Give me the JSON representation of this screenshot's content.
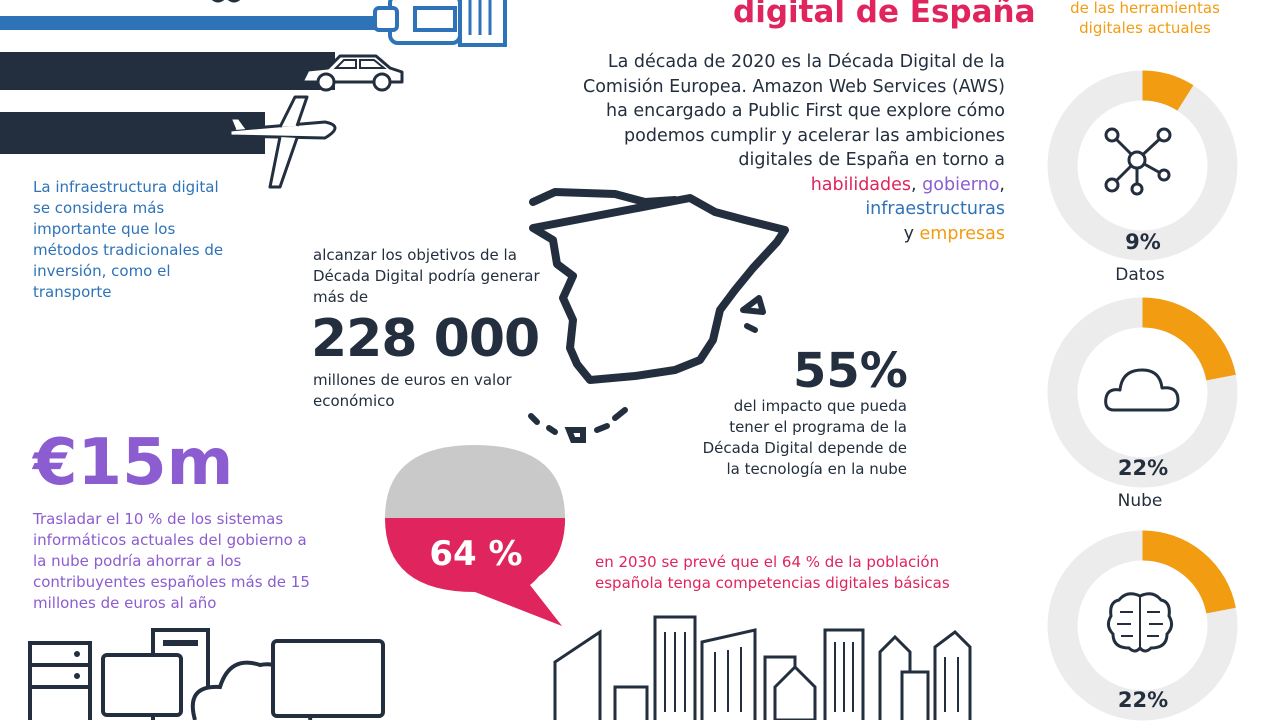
{
  "header": {
    "headline": "digital de España",
    "right_heading": "de las herramientas digitales actuales"
  },
  "intro": {
    "text": "La década de 2020 es la Década Digital de la Comisión Europea. Amazon Web Services (AWS) ha encargado a Public First que explore cómo podemos cumplir y acelerar las ambiciones digitales de España en torno a",
    "habilidades": "habilidades",
    "comma1": ", ",
    "gobierno": "gobierno",
    "comma2": ",",
    "infraestructuras": "infraestructuras",
    "y": "y ",
    "empresas": "empresas"
  },
  "infra_note": "La infraestructura digital se considera más importante que los métodos tradicionales de inversión, como el transporte",
  "economic": {
    "lead": "alcanzar los objetivos de la Década Digital podría generar más de",
    "value": "228 000",
    "tail": "millones de euros en valor económico"
  },
  "cloud_impact": {
    "value": "55%",
    "text": "del impacto que pueda tener el programa de la Década Digital depende de la tecnología en la nube"
  },
  "savings": {
    "value": "€15m",
    "text": "Trasladar el 10 % de los sistemas informáticos actuales del gobierno a la nube podría ahorrar a los contribuyentes españoles más de 15 millones de euros al año"
  },
  "skills": {
    "value": "64 %",
    "fraction": 0.64,
    "text": "en 2030 se prevé que el 64 % de la población española tenga competencias digitales básicas"
  },
  "donuts": [
    {
      "pct": "9%",
      "fraction": 0.09,
      "label": "Datos",
      "icon": "network-icon"
    },
    {
      "pct": "22%",
      "fraction": 0.22,
      "label": "Nube",
      "icon": "cloud-icon"
    },
    {
      "pct": "22%",
      "fraction": 0.22,
      "label": "",
      "icon": "brain-icon"
    }
  ],
  "colors": {
    "navy": "#232f3e",
    "pink": "#e0245e",
    "orange": "#f29c11",
    "purple": "#8c5cd1",
    "blue": "#2e73b8",
    "gray": "#c9c9c9"
  }
}
